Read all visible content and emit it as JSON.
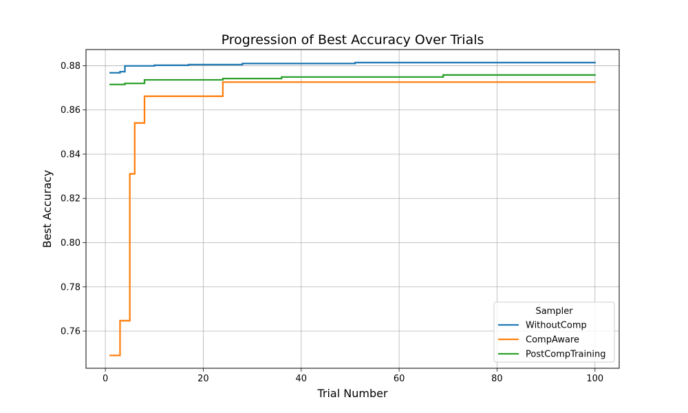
{
  "chart_data": {
    "type": "line",
    "step": true,
    "title": "Progression of Best Accuracy Over Trials",
    "xlabel": "Trial Number",
    "ylabel": "Best Accuracy",
    "xlim": [
      -3.95,
      104.95
    ],
    "ylim": [
      0.7432,
      0.8873
    ],
    "xticks": [
      0,
      20,
      40,
      60,
      80,
      100
    ],
    "yticks": [
      0.76,
      0.78,
      0.8,
      0.82,
      0.84,
      0.86,
      0.88
    ],
    "ytick_labels": [
      "0.76",
      "0.78",
      "0.80",
      "0.82",
      "0.84",
      "0.86",
      "0.88"
    ],
    "grid": true,
    "legend": {
      "title": "Sampler",
      "placement": "lower-right"
    },
    "series": [
      {
        "name": "WithoutComp",
        "color": "#1f77b4",
        "x": [
          1,
          3,
          4,
          10,
          17,
          28,
          51,
          100
        ],
        "y": [
          0.8768,
          0.8773,
          0.8799,
          0.8802,
          0.8805,
          0.881,
          0.8814,
          0.8814
        ]
      },
      {
        "name": "CompAware",
        "color": "#ff7f0e",
        "x": [
          1,
          3,
          5,
          6,
          8,
          24,
          100
        ],
        "y": [
          0.749,
          0.7647,
          0.8311,
          0.8541,
          0.8662,
          0.8726,
          0.8726
        ]
      },
      {
        "name": "PostCompTraining",
        "color": "#2ca02c",
        "x": [
          1,
          4,
          8,
          24,
          36,
          69,
          100
        ],
        "y": [
          0.8715,
          0.872,
          0.8736,
          0.8742,
          0.8749,
          0.8758,
          0.8758
        ]
      }
    ]
  }
}
